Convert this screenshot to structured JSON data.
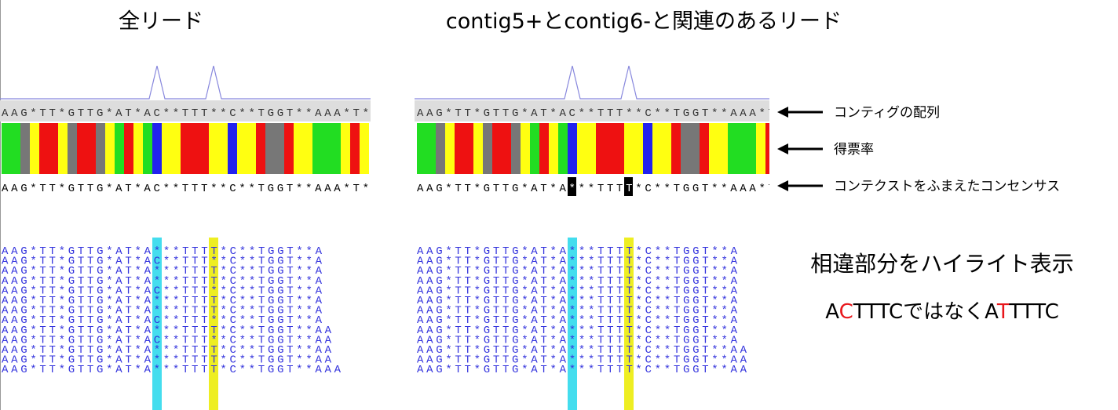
{
  "panels": [
    {
      "title": "全リード",
      "contig": "AAG*TT*GTTG*AT*AC**TTT**C**TGGT**AAA*T*",
      "consensus": "AAG*TT*GTTG*AT*AC**TTT**C**TGGT**AAA*T*",
      "reads": [
        "AAG*TT*GTTG*AT*A***TTTT*C**TGGT**A",
        "AAG*TT*GTTG*AT*AC**TTT**C**TGGT**A",
        "AAG*TT*GTTG*AT*A***TTTT*C**TGGT**A",
        "AAG*TT*GTTG*AT*A***TTTT*C**TGGT**A",
        "AAG*TT*GTTG*AT*AC**TTT**C**TGGT**A",
        "AAG*TT*GTTG*AT*A***TTTT*C**TGGT**A",
        "AAG*TT*GTTG*AT*A***TTTT*C**TGGT**A",
        "AAG*TT*GTTG*AT*AC**TTT**C**TGGT**A",
        "AAG*TT*GTTG*AT*A***TTTT*C**TGGT**AA",
        "AAG*TT*GTTG*AT*AC**TTT**C**TGGT**AA",
        "AAG*TT*GTTG*AT*A***TTTT*C**TGGT**AA",
        "AAG*TT*GTTG*AT*A***TTTT*C**TGGT**AA",
        "AAG*TT*GTTG*AT*A***TTTT*C**TGGT**AAA"
      ]
    },
    {
      "title": "contig5+とcontig6-と関連のあるリード",
      "contig": "AAG*TT*GTTG*AT*AC**TTT**C**TGGT**AAA*T",
      "consensus": "AAG*TT*GTTG*AT*A***TTTT*C**TGGT**AAA*T",
      "reads": [
        "AAG*TT*GTTG*AT*A***TTTT*C**TGGT**A",
        "AAG*TT*GTTG*AT*A***TTTT*C**TGGT**A",
        "AAG*TT*GTTG*AT*A***TTTT*C**TGGT**A",
        "AAG*TT*GTTG*AT*A***TTTT*C**TGGT**A",
        "AAG*TT*GTTG*AT*A***TTTT*C**TGGT**A",
        "AAG*TT*GTTG*AT*A***TTTT*C**TGGT**A",
        "AAG*TT*GTTG*AT*A***TTTT*C**TGGT**A",
        "AAG*TT*GTTG*AT*A***TTTT*C**TGGT**A",
        "AAG*TT*GTTG*AT*A***TTTT*C**TGGT**A",
        "AAG*TT*GTTG*AT*A***TTTT*C**TGGT**A",
        "AAG*TT*GTTG*AT*A***TTTT*C**TGGT**AA",
        "AAG*TT*GTTG*AT*A***TTTT*C**TGGT**AA",
        "AAG*TT*GTTG*AT*A***TTTT*C**TGGT**AA"
      ]
    }
  ],
  "annotations": [
    "コンティグの配列",
    "得票率",
    "コンテクストをふまえたコンセンサス"
  ],
  "note": {
    "title": "相違部分をハイライト表示",
    "segments": [
      {
        "text": "A",
        "color": "#000000"
      },
      {
        "text": "C",
        "color": "#e8161b"
      },
      {
        "text": "TTTCではなく",
        "color": "#000000"
      },
      {
        "text": "A",
        "color": "#000000"
      },
      {
        "text": "T",
        "color": "#e8161b"
      },
      {
        "text": "TTTC",
        "color": "#000000"
      }
    ]
  }
}
